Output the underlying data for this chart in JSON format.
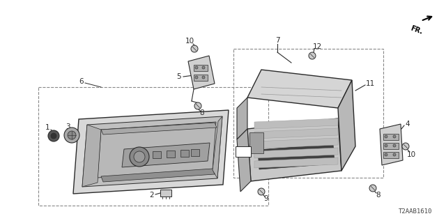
{
  "bg_color": "#ffffff",
  "line_color": "#2a2a2a",
  "diagram_code": "T2AAB1610",
  "fig_width": 6.4,
  "fig_height": 3.2,
  "dpi": 100,
  "fs_label": 7.5,
  "fs_code": 6.5
}
